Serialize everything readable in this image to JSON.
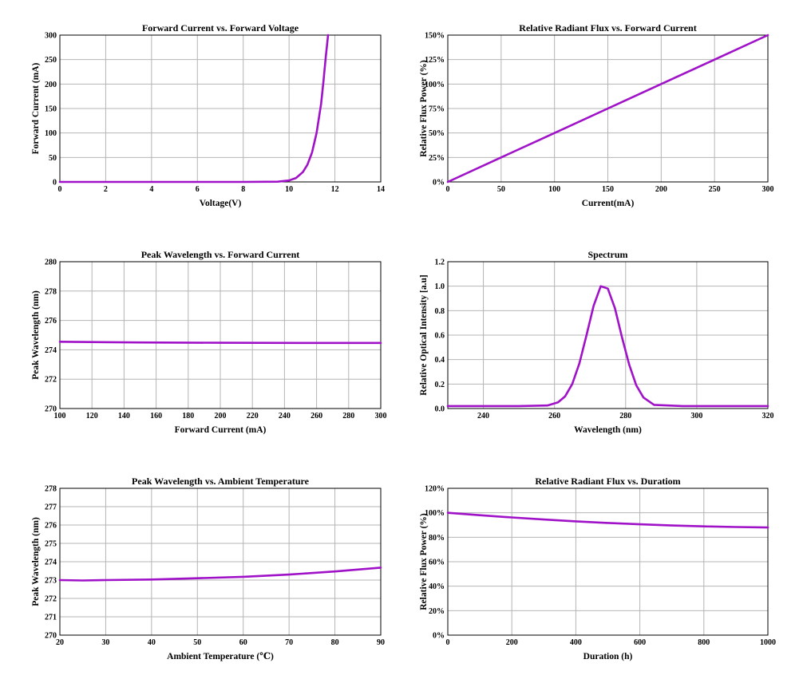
{
  "line_color": "#a012c8",
  "chart_data": [
    {
      "type": "line",
      "title": "Forward Current vs. Forward Voltage",
      "xlabel": "Voltage(V)",
      "ylabel": "Forward Current (mA)",
      "xlim": [
        0,
        14
      ],
      "ylim": [
        0,
        300
      ],
      "xticks": [
        0,
        2,
        4,
        6,
        8,
        10,
        12,
        14
      ],
      "yticks": [
        0,
        50,
        100,
        150,
        200,
        250,
        300
      ],
      "xtick_labels": [
        "0",
        "2",
        "4",
        "6",
        "8",
        "10",
        "12",
        "14"
      ],
      "ytick_labels": [
        "0",
        "50",
        "100",
        "150",
        "200",
        "250",
        "300"
      ],
      "grid": true,
      "series": [
        {
          "x": [
            0,
            2,
            4,
            6,
            8,
            9.5,
            10,
            10.3,
            10.6,
            10.8,
            11.0,
            11.2,
            11.4,
            11.5,
            11.6,
            11.7
          ],
          "y": [
            0,
            0,
            0,
            0,
            0,
            0.5,
            3,
            8,
            20,
            35,
            60,
            100,
            160,
            205,
            255,
            300
          ]
        }
      ]
    },
    {
      "type": "line",
      "title": "Relative Radiant Flux vs. Forward Current",
      "xlabel": "Current(mA)",
      "ylabel": "Relative Flux Power (%)",
      "xlim": [
        0,
        300
      ],
      "ylim": [
        0,
        150
      ],
      "xticks": [
        0,
        50,
        100,
        150,
        200,
        250,
        300
      ],
      "yticks": [
        0,
        25,
        50,
        75,
        100,
        125,
        150
      ],
      "xtick_labels": [
        "0",
        "50",
        "100",
        "150",
        "200",
        "250",
        "300"
      ],
      "ytick_labels": [
        "0%",
        "25%",
        "50%",
        "75%",
        "100%",
        "125%",
        "150%"
      ],
      "grid": true,
      "series": [
        {
          "x": [
            0,
            50,
            100,
            150,
            200,
            250,
            300
          ],
          "y": [
            0,
            25,
            50,
            75,
            100,
            125,
            150
          ]
        }
      ]
    },
    {
      "type": "line",
      "title": "Peak Wavelength vs. Forward Current",
      "xlabel": "Forward Current (mA)",
      "ylabel": "Peak Wavelength (nm)",
      "xlim": [
        100,
        300
      ],
      "ylim": [
        270,
        280
      ],
      "xticks": [
        100,
        120,
        140,
        160,
        180,
        200,
        220,
        240,
        260,
        280,
        300
      ],
      "yticks": [
        270,
        272,
        274,
        276,
        278,
        280
      ],
      "xtick_labels": [
        "100",
        "120",
        "140",
        "160",
        "180",
        "200",
        "220",
        "240",
        "260",
        "280",
        "300"
      ],
      "ytick_labels": [
        "270",
        "272",
        "274",
        "276",
        "278",
        "280"
      ],
      "grid": true,
      "series": [
        {
          "x": [
            100,
            150,
            200,
            250,
            300
          ],
          "y": [
            274.55,
            274.5,
            274.48,
            274.47,
            274.47
          ]
        }
      ]
    },
    {
      "type": "line",
      "title": "Spectrum",
      "xlabel": "Wavelength (nm)",
      "ylabel": "Relative Optical Intensity [a.u]",
      "xlim": [
        230,
        320
      ],
      "ylim": [
        0,
        1.2
      ],
      "xticks": [
        240,
        260,
        280,
        300,
        320
      ],
      "yticks": [
        0,
        0.2,
        0.4,
        0.6,
        0.8,
        1.0,
        1.2
      ],
      "xtick_labels": [
        "240",
        "260",
        "280",
        "300",
        "320"
      ],
      "ytick_labels": [
        "0.0",
        "0.2",
        "0.4",
        "0.6",
        "0.8",
        "1.0",
        "1.2"
      ],
      "grid": true,
      "series": [
        {
          "x": [
            230,
            250,
            258,
            261,
            263,
            265,
            267,
            269,
            271,
            273,
            275,
            277,
            279,
            281,
            283,
            285,
            288,
            296,
            320
          ],
          "y": [
            0.02,
            0.02,
            0.025,
            0.05,
            0.1,
            0.2,
            0.37,
            0.6,
            0.84,
            1.0,
            0.98,
            0.82,
            0.58,
            0.36,
            0.19,
            0.09,
            0.03,
            0.02,
            0.02
          ]
        }
      ]
    },
    {
      "type": "line",
      "title": "Peak Wavelength vs. Ambient Temperature",
      "xlabel": "Ambient Temperature (℃)",
      "ylabel": "Peak Wavelength (nm)",
      "xlim": [
        20,
        90
      ],
      "ylim": [
        270,
        278
      ],
      "xticks": [
        20,
        30,
        40,
        50,
        60,
        70,
        80,
        90
      ],
      "yticks": [
        270,
        271,
        272,
        273,
        274,
        275,
        276,
        277,
        278
      ],
      "xtick_labels": [
        "20",
        "30",
        "40",
        "50",
        "60",
        "70",
        "80",
        "90"
      ],
      "ytick_labels": [
        "270",
        "271",
        "272",
        "273",
        "274",
        "275",
        "276",
        "277",
        "278"
      ],
      "grid": true,
      "series": [
        {
          "x": [
            20,
            25,
            30,
            40,
            50,
            60,
            70,
            80,
            90
          ],
          "y": [
            273.0,
            272.98,
            273.0,
            273.03,
            273.1,
            273.18,
            273.3,
            273.47,
            273.68
          ]
        }
      ]
    },
    {
      "type": "line",
      "title": "Relative Radiant Flux vs. Duratiom",
      "xlabel": "Duration (h)",
      "ylabel": "Relative Flux Power (%)",
      "xlim": [
        0,
        1000
      ],
      "ylim": [
        0,
        120
      ],
      "xticks": [
        0,
        200,
        400,
        600,
        800,
        1000
      ],
      "yticks": [
        0,
        20,
        40,
        60,
        80,
        100,
        120
      ],
      "xtick_labels": [
        "0",
        "200",
        "400",
        "600",
        "800",
        "1000"
      ],
      "ytick_labels": [
        "0%",
        "20%",
        "40%",
        "60%",
        "80%",
        "100%",
        "120%"
      ],
      "grid": true,
      "series": [
        {
          "x": [
            0,
            100,
            200,
            300,
            400,
            500,
            600,
            700,
            800,
            900,
            1000
          ],
          "y": [
            100,
            98,
            96.2,
            94.5,
            93,
            91.7,
            90.6,
            89.6,
            88.9,
            88.4,
            88
          ]
        }
      ]
    }
  ]
}
